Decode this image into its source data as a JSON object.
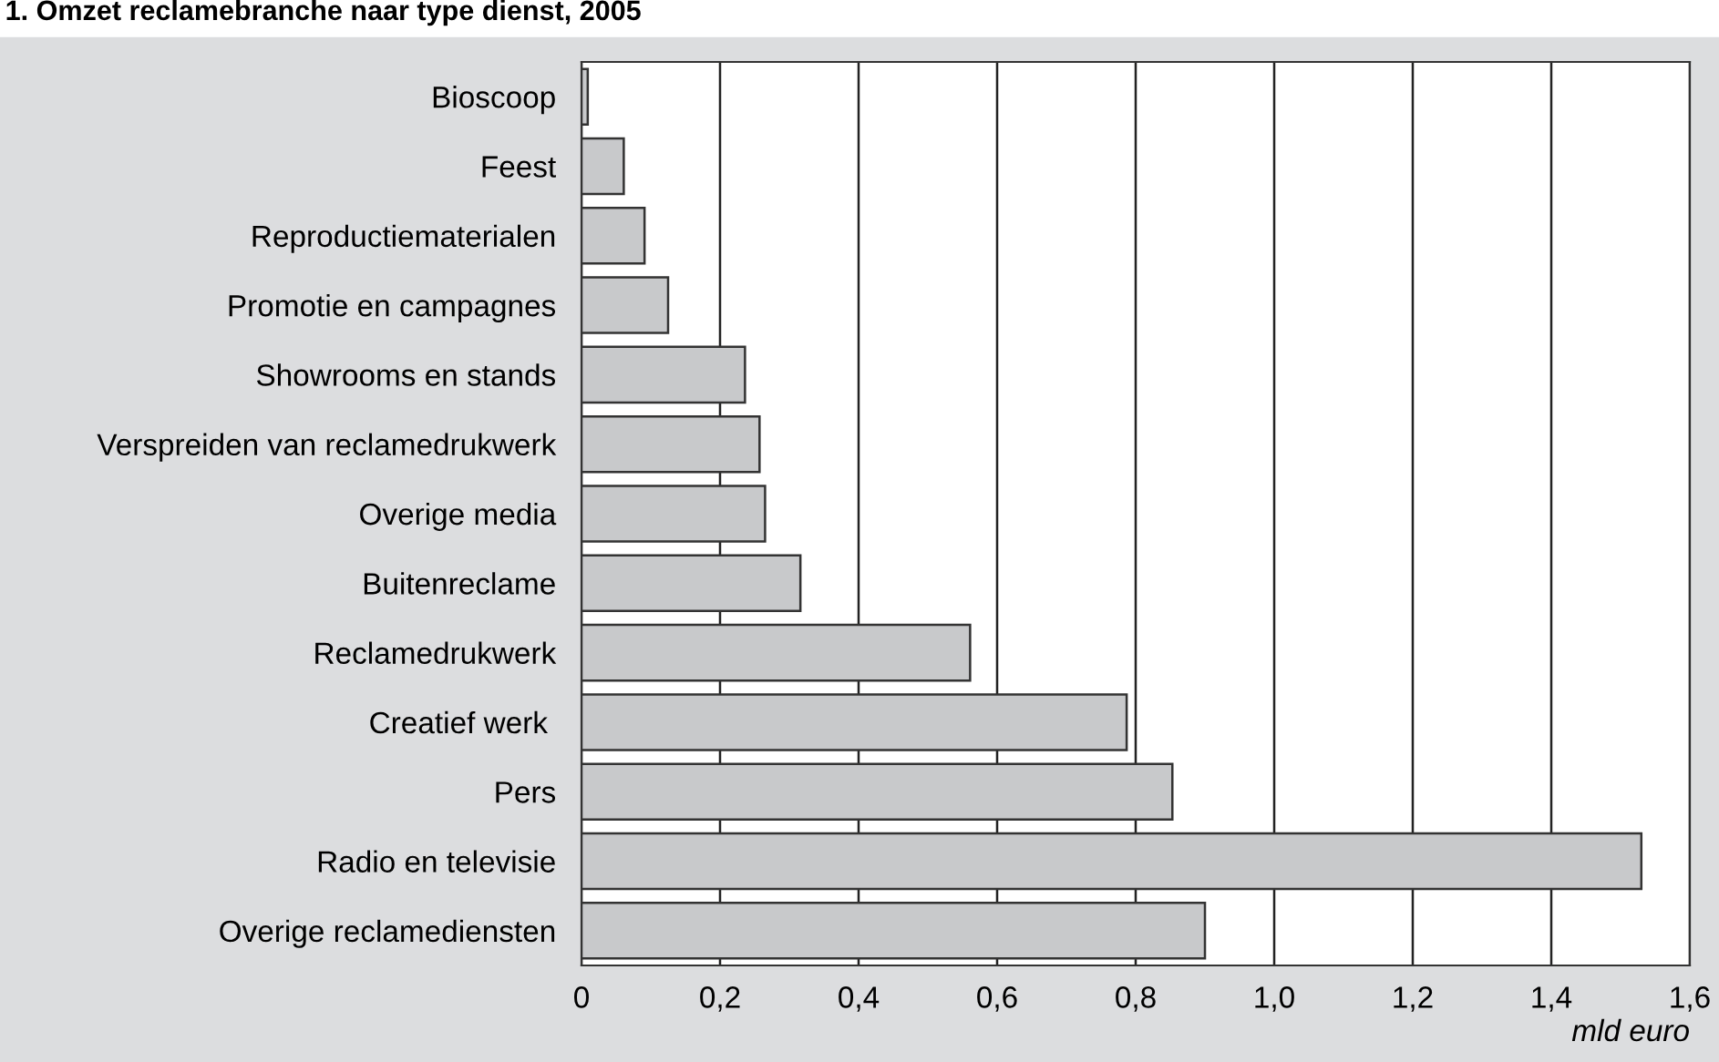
{
  "chart_data": {
    "type": "bar",
    "orientation": "horizontal",
    "title": "1. Omzet reclamebranche naar type dienst, 2005",
    "xlabel": "mld euro",
    "categories": [
      "Bioscoop",
      "Feest",
      "Reproductiematerialen",
      "Promotie en campagnes",
      "Showrooms en stands",
      "Verspreiden van reclamedrukwerk",
      "Overige media",
      "Buitenreclame",
      "Reclamedrukwerk",
      "Creatief werk ",
      "Pers",
      "Radio en televisie",
      "Overige reclamediensten"
    ],
    "values": [
      0.009,
      0.061,
      0.091,
      0.125,
      0.236,
      0.257,
      0.265,
      0.316,
      0.561,
      0.787,
      0.853,
      1.53,
      0.9
    ],
    "color": "#c8c9cb",
    "xlim": [
      0,
      1.6
    ],
    "xticks": [
      0,
      {
        "value": 0.2,
        "label": "0,2"
      },
      {
        "value": 0.4,
        "label": "0,4"
      },
      {
        "value": 0.6,
        "label": "0,6"
      },
      {
        "value": 0.8,
        "label": "0,8"
      },
      {
        "value": 1.0,
        "label": "1,0"
      },
      {
        "value": 1.2,
        "label": "1,2"
      },
      {
        "value": 1.4,
        "label": "1,4"
      },
      {
        "value": 1.6,
        "label": "1,6"
      }
    ],
    "grid": "x"
  }
}
